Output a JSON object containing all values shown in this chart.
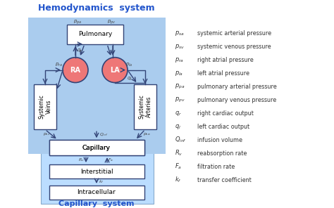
{
  "title_top": "Hemodynamics  system",
  "title_bottom": "Capillary  system",
  "title_color": "#2255cc",
  "bg_color": "#aaccee",
  "capillary_bg": "#aaddff",
  "box_edge_color": "#334477",
  "legend_items": [
    [
      "p_{sa}",
      "systemic arterial pressure"
    ],
    [
      "p_{sv}",
      "systemic venous pressure"
    ],
    [
      "p_{ra}",
      "right atrial pressure"
    ],
    [
      "p_{la}",
      "left atrial pressure"
    ],
    [
      "p_{pa}",
      "pulmonary arterial pressure"
    ],
    [
      "p_{pv}",
      "pulmonary venous pressure"
    ],
    [
      "q_r",
      "right cardiac output"
    ],
    [
      "q_l",
      "left cardiac output"
    ],
    [
      "Q_{inf}",
      "infusion volume"
    ],
    [
      "R_v",
      "reabsorption rate"
    ],
    [
      "F_a",
      "filtration rate"
    ],
    [
      "k_f",
      "transfer coefficient"
    ]
  ],
  "figure_bg": "#ffffff"
}
